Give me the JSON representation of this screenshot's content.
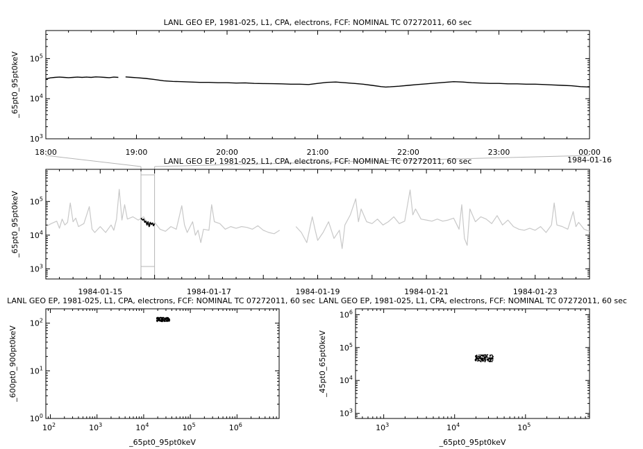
{
  "chart_data": [
    {
      "id": "top",
      "type": "line",
      "title": "LANL GEO EP, 1981-025, L1, CPA, electrons, FCF: NOMINAL TC 07272011, 60 sec",
      "ylabel": "_65pt0_95pt0keV",
      "y_scale": "log",
      "ylim": [
        1000,
        500000
      ],
      "y_ticks": [
        {
          "base": "10",
          "exp": "3"
        },
        {
          "base": "10",
          "exp": "4"
        },
        {
          "base": "10",
          "exp": "5"
        }
      ],
      "x_tick_labels": [
        "18:00",
        "19:00",
        "20:00",
        "21:00",
        "22:00",
        "23:00",
        "00:00"
      ],
      "x_extra_label": "1984-01-16",
      "series": [
        {
          "color": "#000000",
          "points": [
            [
              0,
              31000
            ],
            [
              0.05,
              33000
            ],
            [
              0.1,
              34000
            ],
            [
              0.15,
              34500
            ],
            [
              0.2,
              34000
            ],
            [
              0.25,
              33500
            ],
            [
              0.3,
              34000
            ],
            [
              0.35,
              34500
            ],
            [
              0.4,
              34000
            ],
            [
              0.45,
              34500
            ],
            [
              0.5,
              34000
            ],
            [
              0.55,
              35000
            ],
            [
              0.6,
              34500
            ],
            [
              0.65,
              34000
            ],
            [
              0.7,
              33500
            ],
            [
              0.75,
              34500
            ],
            [
              0.8,
              34000
            ],
            [
              0.82,
              null
            ],
            [
              0.84,
              34500
            ],
            [
              0.85,
              null
            ],
            [
              0.88,
              35000
            ],
            [
              0.95,
              34000
            ],
            [
              1.0,
              33500
            ],
            [
              1.1,
              32000
            ],
            [
              1.2,
              30000
            ],
            [
              1.3,
              28000
            ],
            [
              1.4,
              27000
            ],
            [
              1.5,
              26500
            ],
            [
              1.6,
              26000
            ],
            [
              1.7,
              25500
            ],
            [
              1.8,
              25500
            ],
            [
              1.9,
              25000
            ],
            [
              2.0,
              25000
            ],
            [
              2.1,
              24500
            ],
            [
              2.2,
              24800
            ],
            [
              2.3,
              24000
            ],
            [
              2.4,
              23800
            ],
            [
              2.5,
              23600
            ],
            [
              2.6,
              23500
            ],
            [
              2.7,
              23000
            ],
            [
              2.8,
              23000
            ],
            [
              2.9,
              22500
            ],
            [
              3.0,
              24000
            ],
            [
              3.1,
              25500
            ],
            [
              3.2,
              26000
            ],
            [
              3.3,
              25000
            ],
            [
              3.4,
              24000
            ],
            [
              3.5,
              23000
            ],
            [
              3.6,
              21500
            ],
            [
              3.7,
              20000
            ],
            [
              3.75,
              19500
            ],
            [
              3.8,
              19800
            ],
            [
              3.9,
              20500
            ],
            [
              4.0,
              21500
            ],
            [
              4.1,
              22500
            ],
            [
              4.2,
              23500
            ],
            [
              4.3,
              24500
            ],
            [
              4.4,
              25500
            ],
            [
              4.5,
              26500
            ],
            [
              4.6,
              26000
            ],
            [
              4.7,
              25000
            ],
            [
              4.8,
              24500
            ],
            [
              4.9,
              24000
            ],
            [
              5.0,
              24000
            ],
            [
              5.1,
              23500
            ],
            [
              5.2,
              23500
            ],
            [
              5.3,
              23000
            ],
            [
              5.4,
              23000
            ],
            [
              5.5,
              22500
            ],
            [
              5.6,
              22000
            ],
            [
              5.7,
              21500
            ],
            [
              5.8,
              21000
            ],
            [
              5.9,
              20000
            ],
            [
              6.0,
              19500
            ]
          ]
        }
      ]
    },
    {
      "id": "middle",
      "type": "line",
      "title": "LANL GEO EP, 1981-025, L1, CPA, electrons, FCF: NOMINAL TC 07272011, 60 sec",
      "ylabel": "_65pt0_95pt0keV",
      "y_scale": "log",
      "ylim": [
        500,
        900000
      ],
      "y_ticks": [
        {
          "base": "10",
          "exp": "3"
        },
        {
          "base": "10",
          "exp": "4"
        },
        {
          "base": "10",
          "exp": "5"
        }
      ],
      "x_tick_labels": [
        "1984-01-15",
        "1984-01-17",
        "1984-01-19",
        "1984-01-21",
        "1984-01-23"
      ],
      "x_range_days": [
        0,
        10
      ],
      "x_tick_days": [
        1,
        3,
        5,
        7,
        9
      ],
      "zoom_window_days": [
        1.75,
        2.0
      ],
      "series": [
        {
          "color": "#c8c8c8",
          "points": [
            [
              0,
              18000
            ],
            [
              0.1,
              22000
            ],
            [
              0.2,
              26000
            ],
            [
              0.25,
              16000
            ],
            [
              0.3,
              30000
            ],
            [
              0.35,
              20000
            ],
            [
              0.4,
              24000
            ],
            [
              0.45,
              90000
            ],
            [
              0.5,
              25000
            ],
            [
              0.55,
              32000
            ],
            [
              0.6,
              18000
            ],
            [
              0.7,
              22000
            ],
            [
              0.8,
              70000
            ],
            [
              0.85,
              15000
            ],
            [
              0.9,
              12000
            ],
            [
              1.0,
              18000
            ],
            [
              1.1,
              12000
            ],
            [
              1.2,
              20000
            ],
            [
              1.25,
              14000
            ],
            [
              1.3,
              30000
            ],
            [
              1.35,
              230000
            ],
            [
              1.4,
              28000
            ],
            [
              1.45,
              80000
            ],
            [
              1.5,
              30000
            ],
            [
              1.6,
              35000
            ],
            [
              1.7,
              28000
            ],
            [
              1.8,
              35000
            ],
            [
              1.9,
              18000
            ],
            [
              2.0,
              24000
            ],
            [
              2.1,
              15000
            ],
            [
              2.2,
              13000
            ],
            [
              2.3,
              18000
            ],
            [
              2.4,
              15000
            ],
            [
              2.5,
              75000
            ],
            [
              2.55,
              20000
            ],
            [
              2.6,
              12000
            ],
            [
              2.7,
              25000
            ],
            [
              2.75,
              10000
            ],
            [
              2.8,
              14000
            ],
            [
              2.85,
              6000
            ],
            [
              2.9,
              15000
            ],
            [
              3.0,
              14000
            ],
            [
              3.05,
              80000
            ],
            [
              3.1,
              25000
            ],
            [
              3.2,
              22000
            ],
            [
              3.3,
              15000
            ],
            [
              3.4,
              18000
            ],
            [
              3.5,
              16000
            ],
            [
              3.6,
              18000
            ],
            [
              3.7,
              17000
            ],
            [
              3.8,
              15000
            ],
            [
              3.9,
              19000
            ],
            [
              4.0,
              14000
            ],
            [
              4.1,
              12000
            ],
            [
              4.2,
              11000
            ],
            [
              4.3,
              14000
            ],
            [
              4.4,
              null
            ],
            [
              4.6,
              18000
            ],
            [
              4.7,
              12000
            ],
            [
              4.8,
              6000
            ],
            [
              4.9,
              35000
            ],
            [
              4.95,
              15000
            ],
            [
              5.0,
              7000
            ],
            [
              5.1,
              12000
            ],
            [
              5.2,
              25000
            ],
            [
              5.3,
              8000
            ],
            [
              5.4,
              14000
            ],
            [
              5.45,
              4000
            ],
            [
              5.5,
              20000
            ],
            [
              5.6,
              40000
            ],
            [
              5.7,
              120000
            ],
            [
              5.75,
              25000
            ],
            [
              5.8,
              60000
            ],
            [
              5.9,
              25000
            ],
            [
              6.0,
              22000
            ],
            [
              6.1,
              30000
            ],
            [
              6.2,
              20000
            ],
            [
              6.3,
              25000
            ],
            [
              6.4,
              35000
            ],
            [
              6.5,
              22000
            ],
            [
              6.6,
              26000
            ],
            [
              6.7,
              220000
            ],
            [
              6.75,
              40000
            ],
            [
              6.8,
              60000
            ],
            [
              6.9,
              30000
            ],
            [
              7.0,
              28000
            ],
            [
              7.1,
              26000
            ],
            [
              7.2,
              30000
            ],
            [
              7.3,
              26000
            ],
            [
              7.4,
              28000
            ],
            [
              7.5,
              32000
            ],
            [
              7.6,
              15000
            ],
            [
              7.65,
              80000
            ],
            [
              7.7,
              8000
            ],
            [
              7.75,
              5000
            ],
            [
              7.8,
              60000
            ],
            [
              7.9,
              25000
            ],
            [
              8.0,
              35000
            ],
            [
              8.1,
              30000
            ],
            [
              8.2,
              22000
            ],
            [
              8.3,
              38000
            ],
            [
              8.4,
              20000
            ],
            [
              8.5,
              28000
            ],
            [
              8.6,
              18000
            ],
            [
              8.7,
              15000
            ],
            [
              8.8,
              14000
            ],
            [
              8.9,
              16000
            ],
            [
              9.0,
              14000
            ],
            [
              9.1,
              18000
            ],
            [
              9.2,
              12000
            ],
            [
              9.3,
              20000
            ],
            [
              9.35,
              90000
            ],
            [
              9.4,
              20000
            ],
            [
              9.5,
              18000
            ],
            [
              9.6,
              15000
            ],
            [
              9.7,
              50000
            ],
            [
              9.75,
              18000
            ],
            [
              9.8,
              24000
            ],
            [
              9.9,
              15000
            ],
            [
              10.0,
              13000
            ]
          ]
        },
        {
          "color": "#000000",
          "points": [
            [
              1.75,
              32000
            ],
            [
              1.78,
              28000
            ],
            [
              1.8,
              30000
            ],
            [
              1.82,
              24000
            ],
            [
              1.84,
              26000
            ],
            [
              1.86,
              20000
            ],
            [
              1.88,
              25000
            ],
            [
              1.9,
              18000
            ],
            [
              1.92,
              24000
            ],
            [
              1.94,
              21000
            ],
            [
              1.96,
              23000
            ],
            [
              1.98,
              19000
            ],
            [
              2.0,
              22000
            ]
          ]
        }
      ]
    },
    {
      "id": "bottom-left",
      "type": "scatter",
      "title": "LANL GEO EP, 1981-025, L1, CPA, electrons, FCF: NOMINAL TC 07272011, 60 sec",
      "xlabel": "_65pt0_95pt0keV",
      "ylabel": "_600pt0_900pt0keV",
      "x_scale": "log",
      "y_scale": "log",
      "xlim": [
        80,
        8000000
      ],
      "ylim": [
        1,
        200
      ],
      "x_ticks": [
        {
          "base": "10",
          "exp": "2"
        },
        {
          "base": "10",
          "exp": "3"
        },
        {
          "base": "10",
          "exp": "4"
        },
        {
          "base": "10",
          "exp": "5"
        },
        {
          "base": "10",
          "exp": "6"
        }
      ],
      "y_ticks": [
        {
          "base": "10",
          "exp": "0"
        },
        {
          "base": "10",
          "exp": "1"
        },
        {
          "base": "10",
          "exp": "2"
        }
      ],
      "cluster": {
        "x_range": [
          19000,
          36000
        ],
        "y_range": [
          108,
          132
        ],
        "color": "#000000"
      }
    },
    {
      "id": "bottom-right",
      "type": "scatter",
      "title": "LANL GEO EP, 1981-025, L1, CPA, electrons, FCF: NOMINAL TC 07272011, 60 sec",
      "xlabel": "_65pt0_95pt0keV",
      "ylabel": "_45pt0_65pt0keV",
      "x_scale": "log",
      "y_scale": "log",
      "xlim": [
        400,
        800000
      ],
      "ylim": [
        700,
        1500000
      ],
      "x_ticks": [
        {
          "base": "10",
          "exp": "3"
        },
        {
          "base": "10",
          "exp": "4"
        },
        {
          "base": "10",
          "exp": "5"
        }
      ],
      "y_ticks": [
        {
          "base": "10",
          "exp": "3"
        },
        {
          "base": "10",
          "exp": "4"
        },
        {
          "base": "10",
          "exp": "5"
        },
        {
          "base": "10",
          "exp": "6"
        }
      ],
      "cluster": {
        "x_range": [
          19500,
          35000
        ],
        "y_range": [
          37000,
          60000
        ],
        "color": "#000000"
      }
    }
  ]
}
